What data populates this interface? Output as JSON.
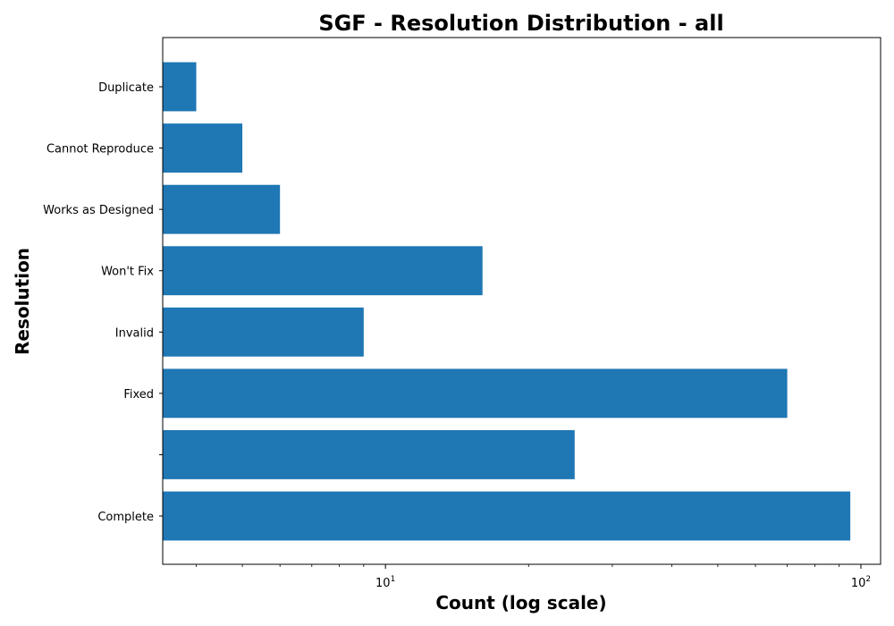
{
  "chart_data": {
    "type": "bar",
    "orientation": "horizontal",
    "title": "SGF - Resolution Distribution - all",
    "xlabel": "Count (log scale)",
    "ylabel": "Resolution",
    "x_scale": "log",
    "xlim": [
      3.4,
      110
    ],
    "x_ticks": [
      {
        "value": 10,
        "base": "10",
        "exponent": "1"
      },
      {
        "value": 100,
        "base": "10",
        "exponent": "2"
      }
    ],
    "categories": [
      "Complete",
      "",
      "Fixed",
      "Invalid",
      "Won't Fix",
      "Works as Designed",
      "Cannot Reproduce",
      "Duplicate"
    ],
    "values": [
      95,
      25,
      70,
      9,
      16,
      6,
      5,
      4
    ],
    "bar_color": "#1f77b4",
    "grid": false,
    "legend": "none"
  }
}
